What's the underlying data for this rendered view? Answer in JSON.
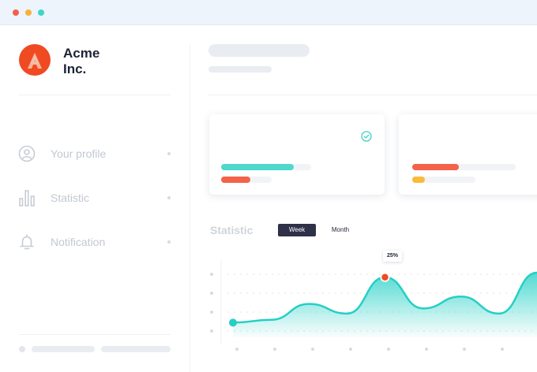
{
  "window": {
    "controls": [
      "close",
      "minimize",
      "maximize"
    ]
  },
  "brand": {
    "name": "Acme\nInc.",
    "logo_letter": "A",
    "logo_color": "#f04a23"
  },
  "sidebar": {
    "items": [
      {
        "label": "Your profile",
        "icon": "user-icon"
      },
      {
        "label": "Statistic",
        "icon": "bar-chart-icon"
      },
      {
        "label": "Notification",
        "icon": "bell-icon"
      }
    ]
  },
  "cards": [
    {
      "icon": "check-circle-icon",
      "bars": [
        {
          "color": "#4fd8cc",
          "level": 0.81
        },
        {
          "color": "#f4624a",
          "level": 0.58
        }
      ]
    },
    {
      "bars": [
        {
          "color": "#f4624a",
          "level": 0.45
        },
        {
          "color": "#f8bb3a",
          "level": 0.2
        }
      ]
    }
  ],
  "statistic": {
    "title": "Statistic",
    "tabs": [
      {
        "label": "Week",
        "active": true
      },
      {
        "label": "Month",
        "active": false
      }
    ],
    "tooltip": "25%"
  },
  "chart_data": {
    "type": "area",
    "title": "Statistic",
    "series": [
      {
        "values": [
          0.12,
          0.17,
          0.45,
          0.28,
          0.92,
          0.37,
          0.58,
          0.28,
          1.0
        ]
      }
    ],
    "highlight": {
      "index": 4,
      "label": "25%"
    },
    "grid": "dotted",
    "colors": {
      "line": "#25cfc4",
      "marker": "#f04a23"
    }
  }
}
